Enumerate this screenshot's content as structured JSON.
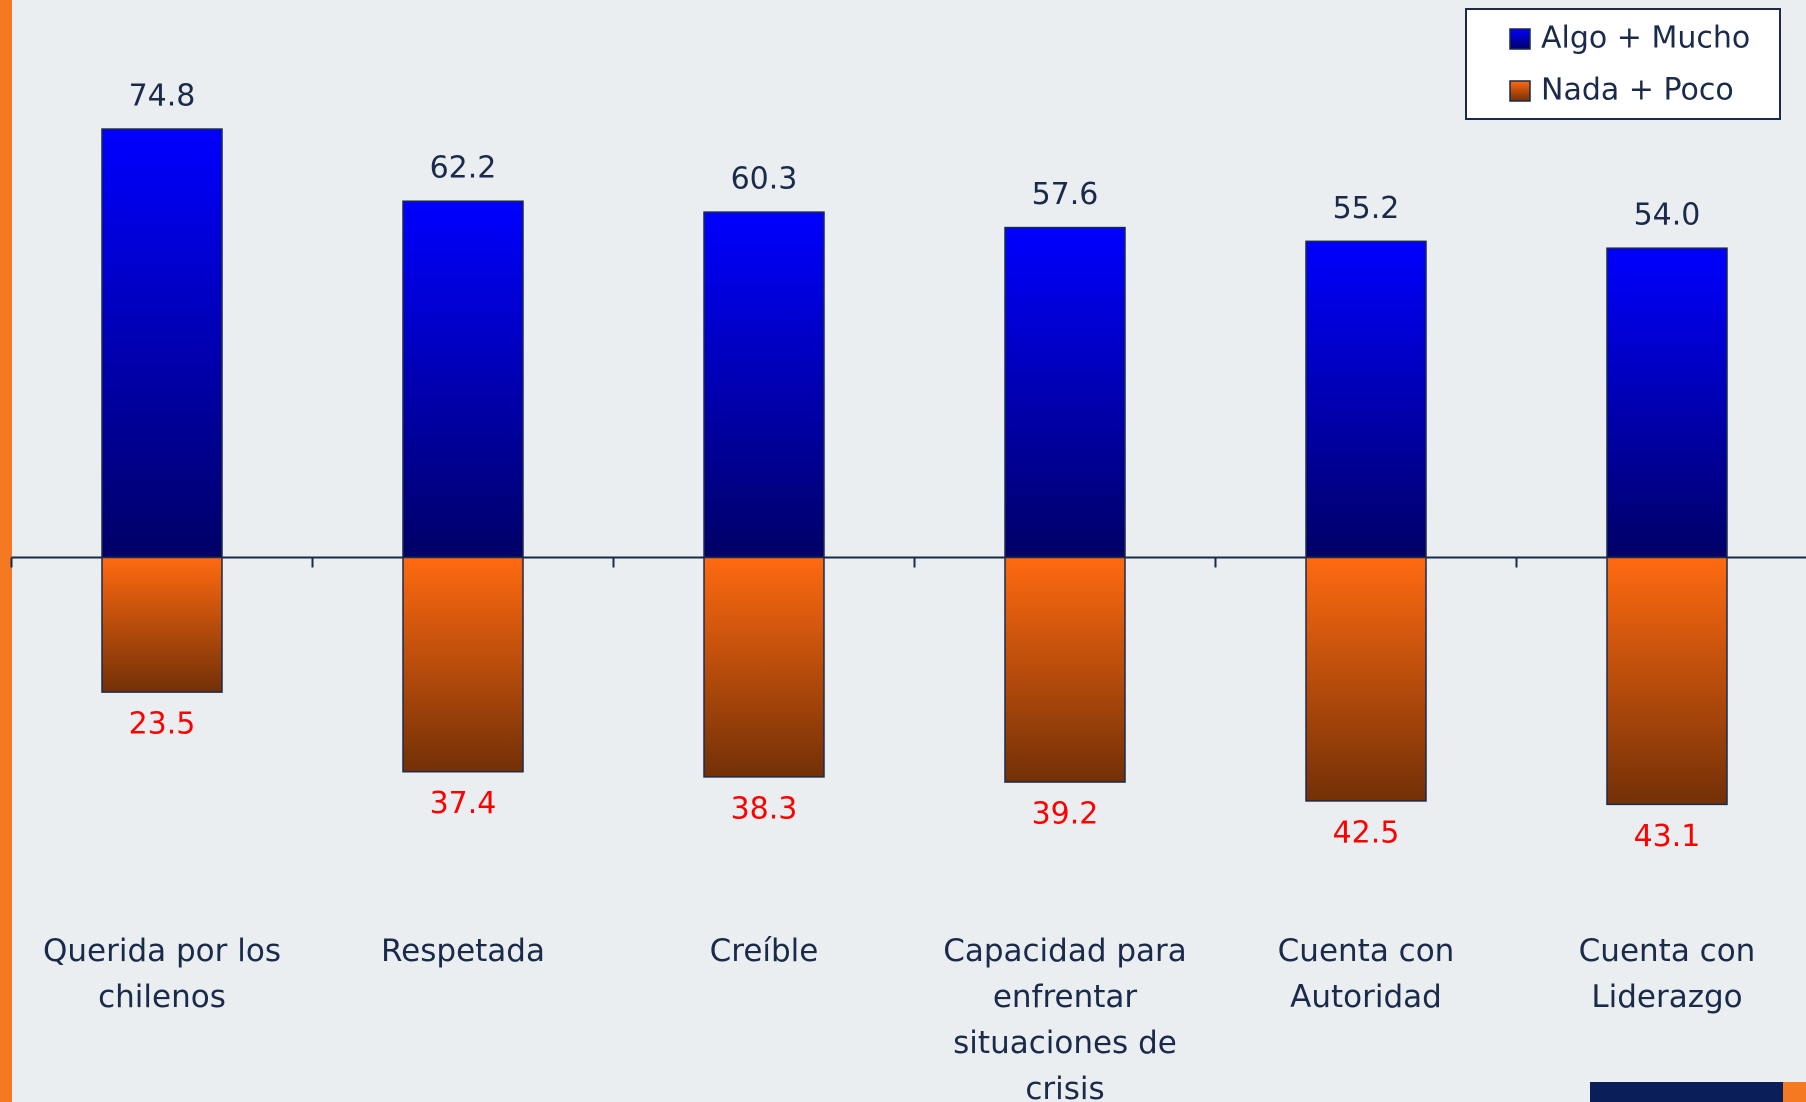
{
  "chart_data": {
    "type": "bar",
    "categories": [
      "Querida por los\nchilenos",
      "Respetada",
      "Creíble",
      "Capacidad para\nenfrentar\nsituaciones de\ncrisis",
      "Cuenta con\nAutoridad",
      "Cuenta con\nLiderazgo"
    ],
    "series": [
      {
        "name": "Algo + Mucho",
        "color": "#0000ff",
        "label_color": "#1a2a4a",
        "values": [
          74.8,
          62.2,
          60.3,
          57.6,
          55.2,
          54.0
        ],
        "value_labels": [
          "74.8",
          "62.2",
          "60.3",
          "57.6",
          "55.2",
          "54.0"
        ]
      },
      {
        "name": "Nada + Poco",
        "color": "#ff6a10",
        "label_color": "#ff0000",
        "values": [
          -23.5,
          -37.4,
          -38.3,
          -39.2,
          -42.5,
          -43.1
        ],
        "value_labels": [
          "23.5",
          "37.4",
          "38.3",
          "39.2",
          "42.5",
          "43.1"
        ]
      }
    ],
    "ylim": [
      -80,
      100
    ],
    "legend": "top-right"
  }
}
